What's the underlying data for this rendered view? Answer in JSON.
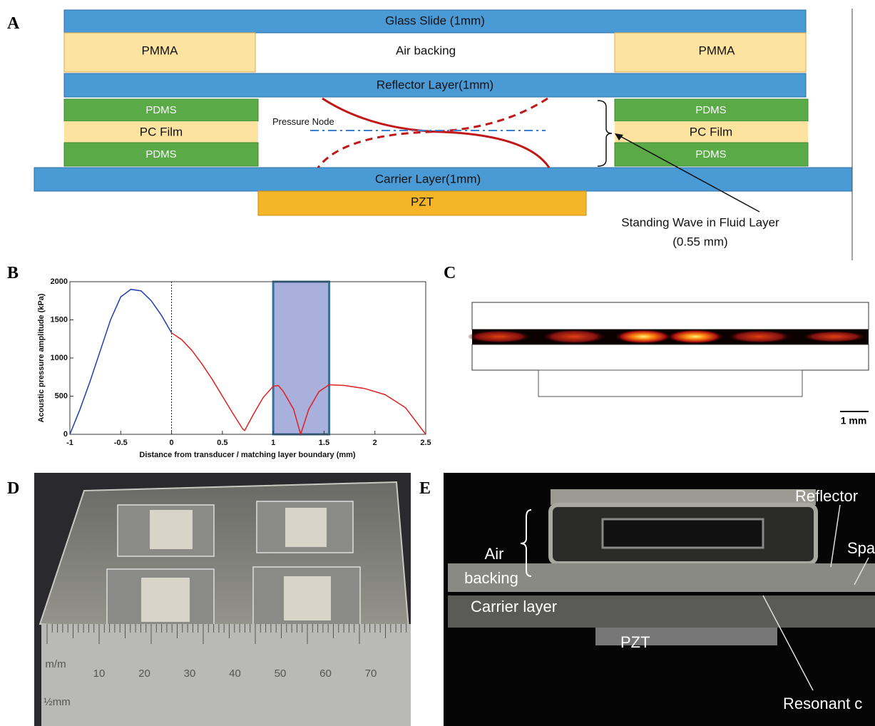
{
  "figure": {
    "panel_labels": [
      "A",
      "B",
      "C",
      "D",
      "E"
    ]
  },
  "diagram_a": {
    "glass_slide": "Glass Slide (1mm)",
    "pmma_left": "PMMA",
    "air_backing": "Air backing",
    "pmma_right": "PMMA",
    "reflector": "Reflector Layer(1mm)",
    "pdms_left_top": "PDMS",
    "pc_film_left": "PC Film",
    "pdms_left_bottom": "PDMS",
    "pdms_right_top": "PDMS",
    "pc_film_right": "PC Film",
    "pdms_right_bottom": "PDMS",
    "pressure_node": "Pressure Node",
    "carrier": "Carrier Layer(1mm)",
    "pzt": "PZT",
    "annotation": [
      "Standing Wave in Fluid Layer",
      "(0.55 mm)"
    ]
  },
  "chart_data": {
    "type": "line",
    "x_label": "Distance from transducer / matching layer boundary (mm)",
    "y_label": "Acoustic pressure amplitude (kPa)",
    "xlim": [
      -1,
      2.5
    ],
    "ylim": [
      0,
      2000
    ],
    "xticks": [
      -1,
      -0.5,
      0,
      0.5,
      1,
      1.5,
      2,
      2.5
    ],
    "yticks": [
      0,
      500,
      1000,
      1500,
      2000
    ],
    "shaded_x": [
      1,
      1.55
    ],
    "vline_x": 0,
    "series": [
      {
        "color": "#1f3fb0",
        "x": [
          -1,
          -0.9,
          -0.8,
          -0.7,
          -0.6,
          -0.5,
          -0.4,
          -0.3,
          -0.2,
          -0.1,
          0
        ],
        "values": [
          0,
          330,
          700,
          1100,
          1500,
          1800,
          1900,
          1880,
          1750,
          1560,
          1330
        ]
      },
      {
        "color": "#e02020",
        "x": [
          0,
          0.1,
          0.2,
          0.3,
          0.4,
          0.5,
          0.6,
          0.7,
          0.72,
          0.8,
          0.9,
          1,
          1.05,
          1.1,
          1.2,
          1.27,
          1.35,
          1.45,
          1.55,
          1.7,
          1.9,
          2.1,
          2.3,
          2.5
        ],
        "values": [
          1330,
          1240,
          1100,
          920,
          720,
          500,
          280,
          70,
          50,
          250,
          480,
          630,
          640,
          560,
          330,
          0,
          330,
          560,
          650,
          640,
          600,
          520,
          350,
          0
        ]
      }
    ]
  },
  "panel_c": {
    "scale_bar": "1 mm"
  },
  "panel_d": {
    "ruler_unit": "m/m",
    "ruler_sub": "½mm",
    "ruler_numbers": [
      "10",
      "20",
      "30",
      "40",
      "50",
      "60",
      "70"
    ]
  },
  "panel_e": {
    "reflector": "Reflector",
    "air": "Air",
    "backing": "backing",
    "spacer": "Spa",
    "carrier": "Carrier layer",
    "pzt": "PZT",
    "resonant": "Resonant c"
  }
}
